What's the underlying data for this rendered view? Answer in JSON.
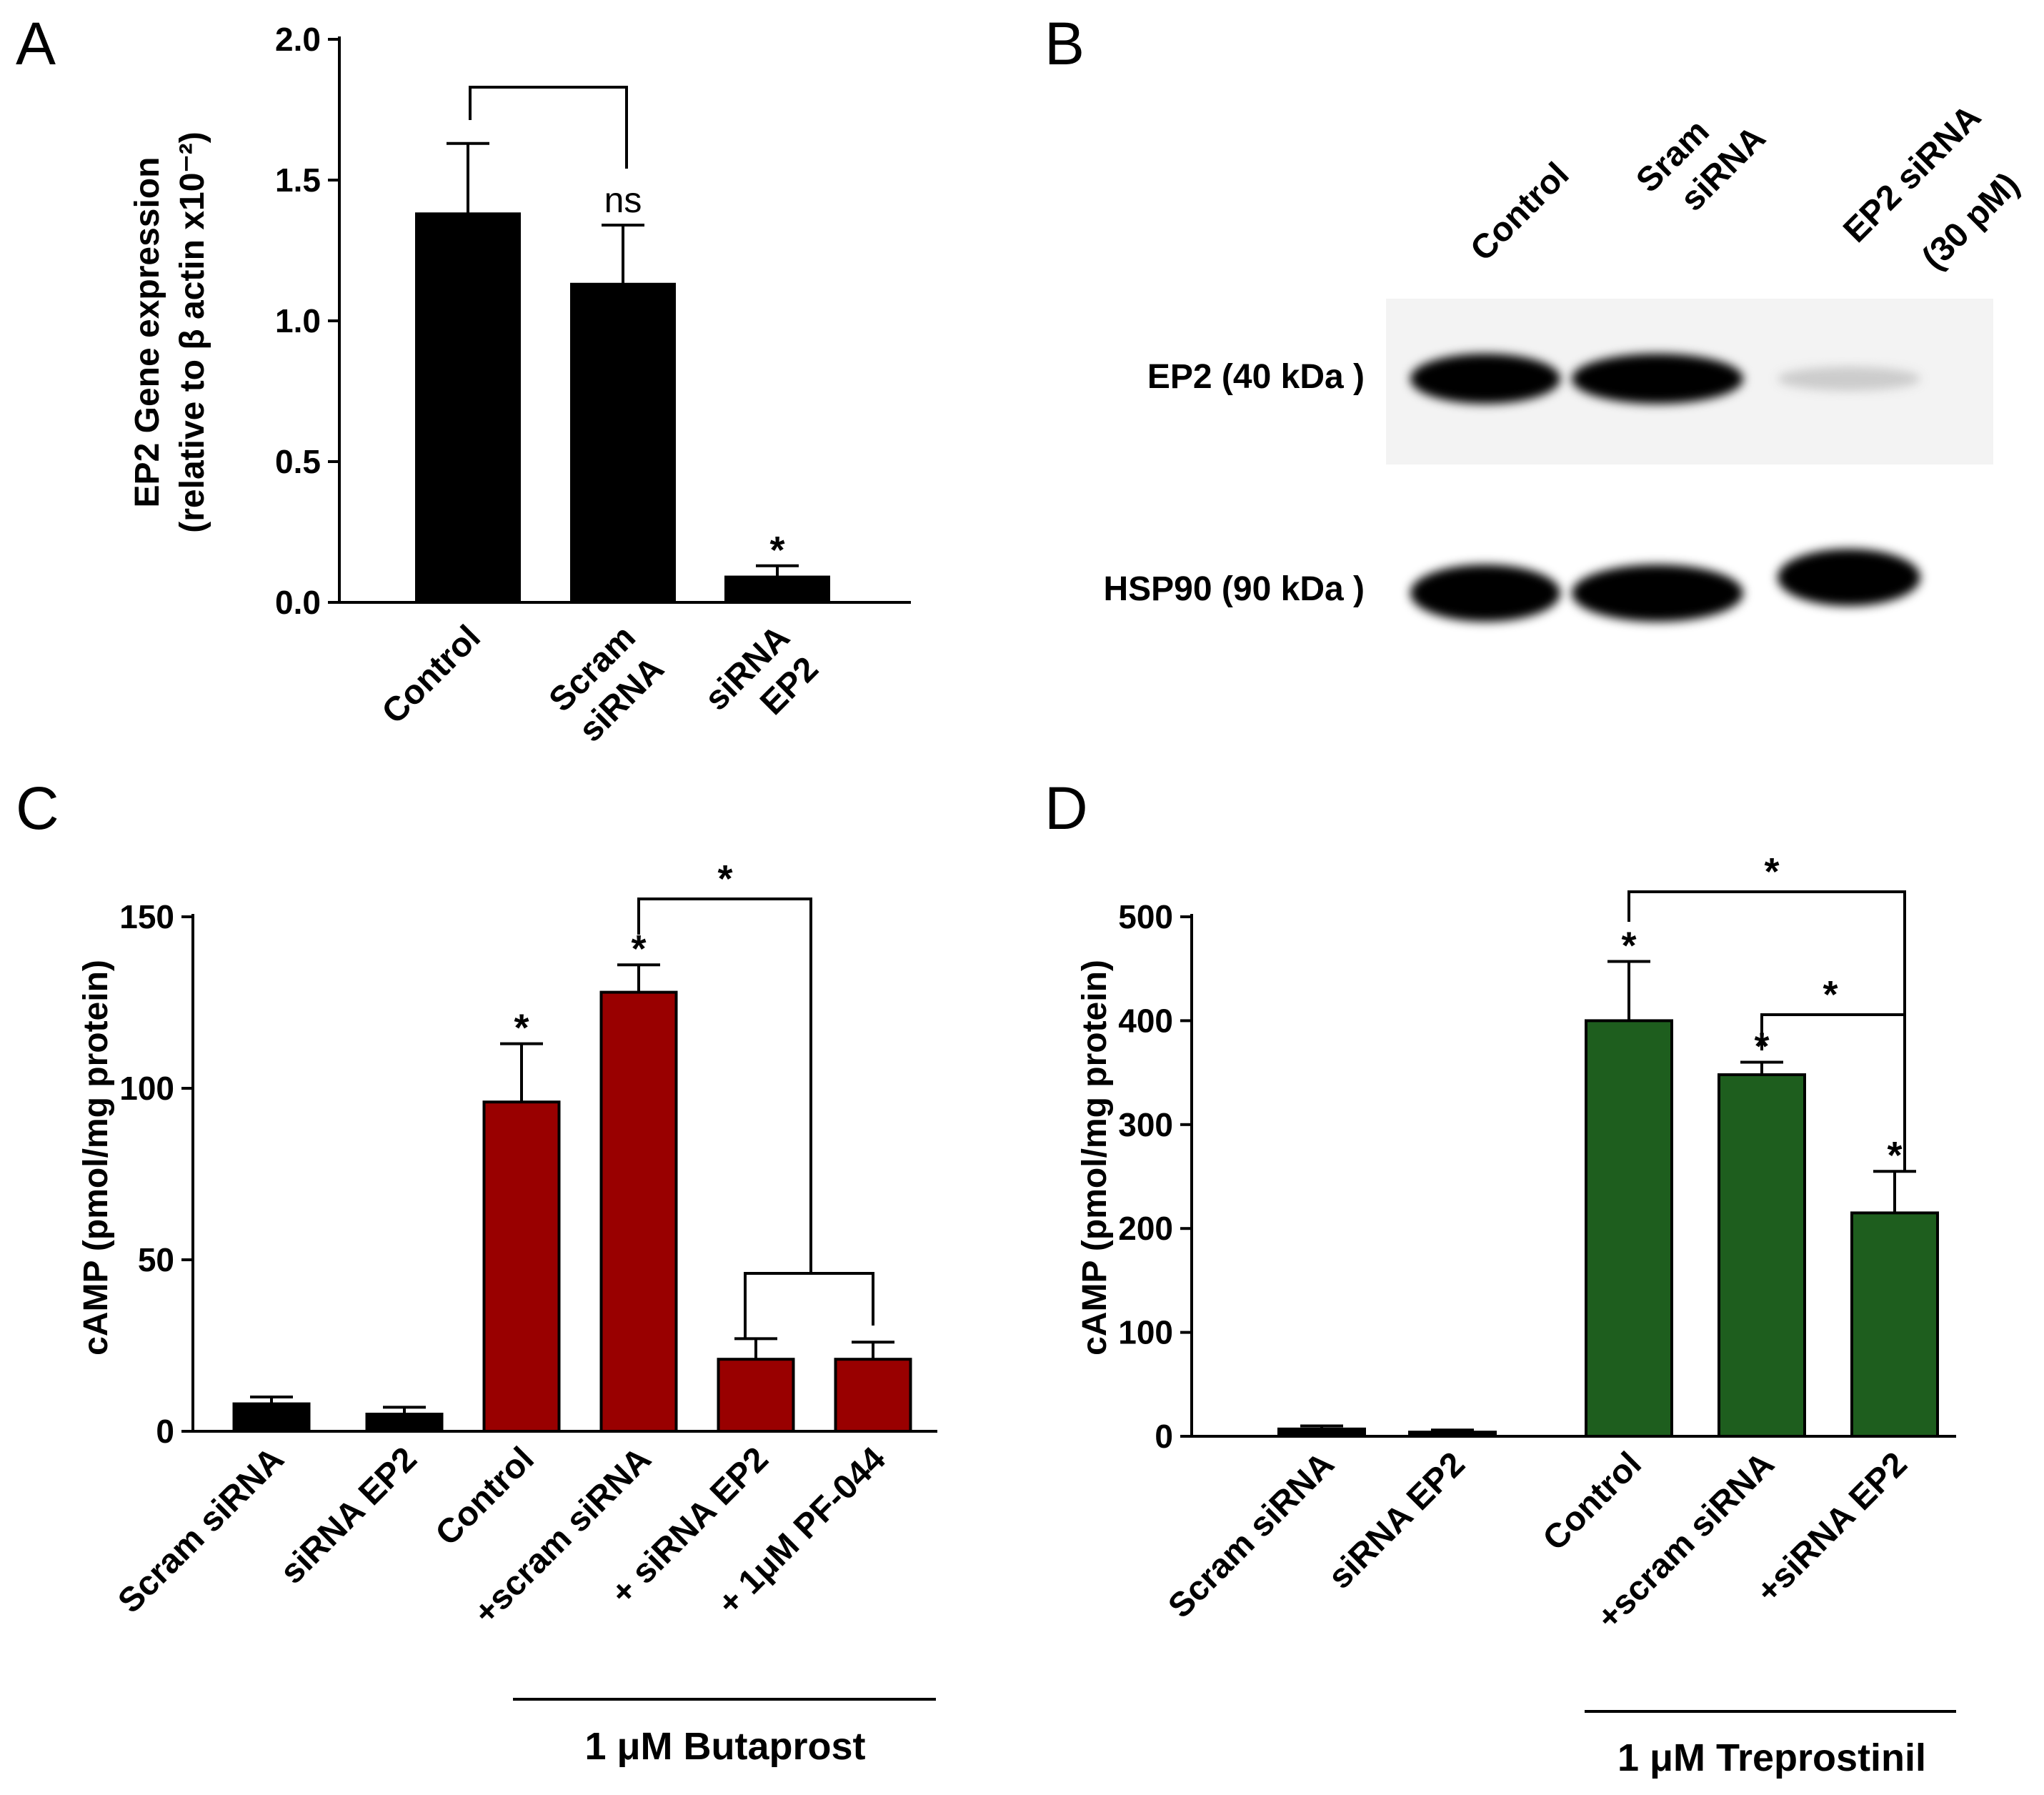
{
  "panels": {
    "a": {
      "letter": "A"
    },
    "b": {
      "letter": "B"
    },
    "c": {
      "letter": "C"
    },
    "d": {
      "letter": "D"
    }
  },
  "blot": {
    "lane_labels": [
      [
        "Control"
      ],
      [
        "Sram",
        "siRNA"
      ],
      [
        "EP2 siRNA",
        "(30 pM)"
      ]
    ],
    "bands": [
      {
        "label": "EP2 (40 kDa )",
        "intensity": [
          1.0,
          0.95,
          0.15
        ]
      },
      {
        "label": "HSP90 (90 kDa )",
        "intensity": [
          1.0,
          1.0,
          1.0
        ]
      }
    ]
  },
  "colors": {
    "black": "#000000",
    "red": "#990000",
    "green": "#1e5e1e"
  },
  "chart_data": [
    {
      "type": "bar",
      "panel": "A",
      "categories": [
        [
          "Control"
        ],
        [
          "Scram",
          "siRNA"
        ],
        [
          "siRNA",
          "EP2"
        ]
      ],
      "values": [
        1.38,
        1.13,
        0.09
      ],
      "errors": [
        0.25,
        0.21,
        0.04
      ],
      "colors": [
        "#000000",
        "#000000",
        "#000000"
      ],
      "ylabel": [
        "EP2 Gene expression",
        "(relative to β actin x10⁻²)"
      ],
      "ylim": [
        0,
        2.0
      ],
      "yticks": [
        "0.0",
        "0.5",
        "1.0",
        "1.5",
        "2.0"
      ],
      "annotations": [
        {
          "bar": 1,
          "text": "ns"
        },
        {
          "bar": 2,
          "text": "*"
        }
      ],
      "brackets": [
        {
          "from": 0,
          "to": 1
        }
      ]
    },
    {
      "type": "bar",
      "panel": "C",
      "categories": [
        [
          "Scram siRNA"
        ],
        [
          "siRNA EP2"
        ],
        [
          "Control"
        ],
        [
          "+scram siRNA"
        ],
        [
          "+ siRNA EP2"
        ],
        [
          "+ 1μM PF-044"
        ]
      ],
      "values": [
        8,
        5,
        96,
        128,
        21,
        21
      ],
      "errors": [
        2,
        2,
        17,
        8,
        6,
        5
      ],
      "colors": [
        "#000000",
        "#000000",
        "#990000",
        "#990000",
        "#990000",
        "#990000"
      ],
      "ylabel": [
        "cAMP (pmol/mg protein)"
      ],
      "ylim": [
        0,
        150
      ],
      "yticks": [
        "0",
        "50",
        "100",
        "150"
      ],
      "annotations": [
        {
          "bar": 2,
          "text": "*"
        },
        {
          "bar": 3,
          "text": "*"
        }
      ],
      "bracket_star": "*",
      "group_label": "1 μM Butaprost"
    },
    {
      "type": "bar",
      "panel": "D",
      "categories": [
        [
          "Scram siRNA"
        ],
        [
          "siRNA EP2"
        ],
        [
          "Control"
        ],
        [
          "+scram siRNA"
        ],
        [
          "+siRNA EP2"
        ]
      ],
      "values": [
        7,
        4,
        400,
        348,
        215
      ],
      "errors": [
        3,
        2,
        57,
        12,
        40
      ],
      "colors": [
        "#000000",
        "#000000",
        "#1e5e1e",
        "#1e5e1e",
        "#1e5e1e"
      ],
      "ylabel": [
        "cAMP (pmol/mg protein)"
      ],
      "ylim": [
        0,
        500
      ],
      "yticks": [
        "0",
        "100",
        "200",
        "300",
        "400",
        "500"
      ],
      "annotations": [
        {
          "bar": 2,
          "text": "*"
        },
        {
          "bar": 3,
          "text": "*"
        },
        {
          "bar": 4,
          "text": "*"
        }
      ],
      "bracket_stars": [
        "*",
        "*"
      ],
      "group_label": "1 μM Treprostinil"
    }
  ]
}
